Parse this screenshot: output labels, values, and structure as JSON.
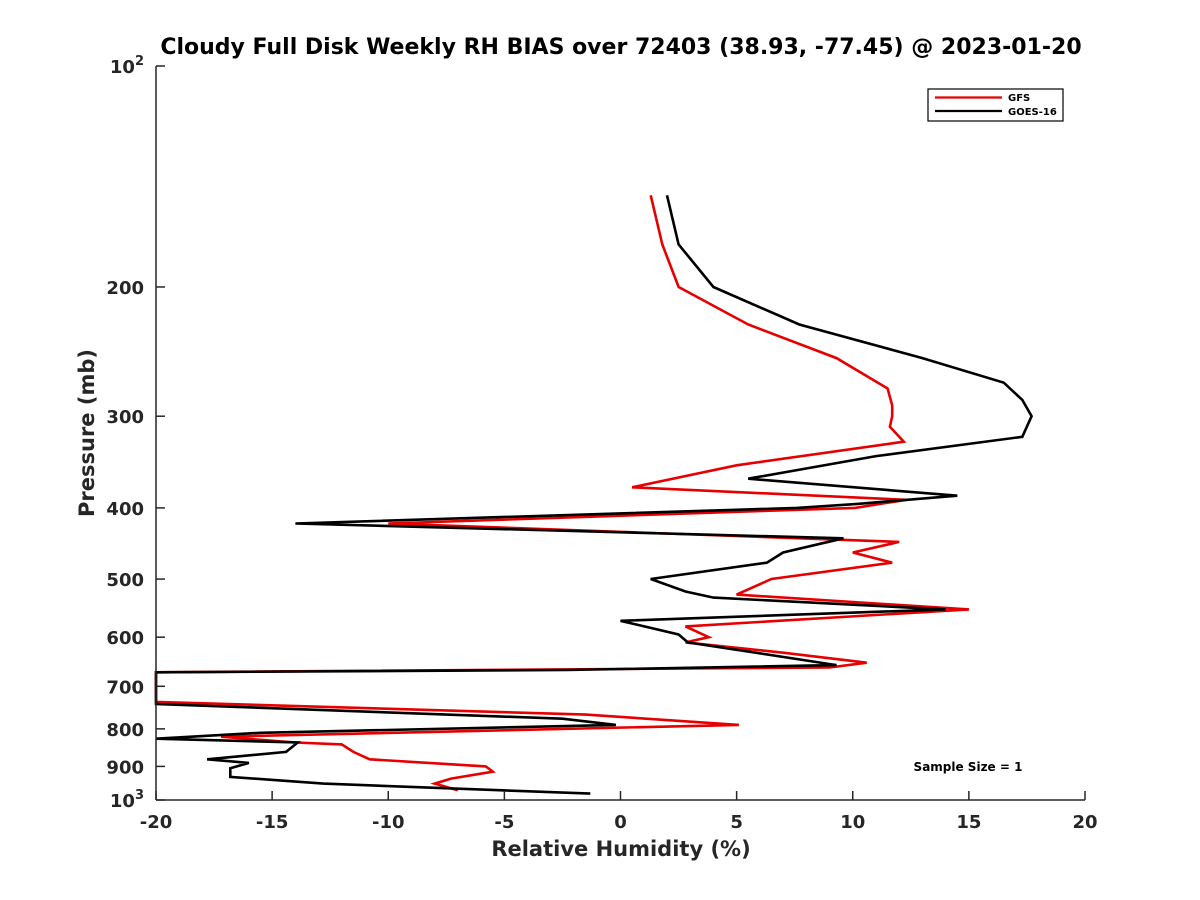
{
  "chart_data": {
    "type": "line",
    "title": "Cloudy Full Disk Weekly RH BIAS over 72403 (38.93, -77.45) @ 2023-01-20",
    "xlabel": "Relative Humidity (%)",
    "ylabel": "Pressure (mb)",
    "xlim": [
      -20,
      20
    ],
    "ylim": [
      100,
      1000
    ],
    "y_scale": "log",
    "y_reversed": true,
    "grid": false,
    "legend_position": "top-right",
    "annotation": "Sample Size = 1",
    "x_ticks": [
      "-20",
      "-15",
      "-10",
      "-5",
      "0",
      "5",
      "10",
      "15",
      "20"
    ],
    "y_ticks": [
      {
        "value": 100,
        "base": "10",
        "exp": "2"
      },
      {
        "value": 200,
        "label": "200"
      },
      {
        "value": 300,
        "label": "300"
      },
      {
        "value": 400,
        "label": "400"
      },
      {
        "value": 500,
        "label": "500"
      },
      {
        "value": 600,
        "label": "600"
      },
      {
        "value": 700,
        "label": "700"
      },
      {
        "value": 800,
        "label": "800"
      },
      {
        "value": 900,
        "label": "900"
      },
      {
        "value": 1000,
        "base": "10",
        "exp": "3"
      }
    ],
    "series": [
      {
        "name": "GFS",
        "color": "#e60000",
        "points": [
          [
            1.3,
            150
          ],
          [
            1.8,
            175
          ],
          [
            2.5,
            200
          ],
          [
            5.5,
            225
          ],
          [
            9.3,
            250
          ],
          [
            11.5,
            275
          ],
          [
            11.7,
            290
          ],
          [
            11.7,
            300
          ],
          [
            11.6,
            310
          ],
          [
            12.2,
            325
          ],
          [
            5.0,
            350
          ],
          [
            0.5,
            375
          ],
          [
            12.3,
            390
          ],
          [
            10.1,
            400
          ],
          [
            -10.0,
            420
          ],
          [
            12.0,
            445
          ],
          [
            10.0,
            460
          ],
          [
            11.7,
            475
          ],
          [
            6.5,
            500
          ],
          [
            5.0,
            525
          ],
          [
            15.0,
            550
          ],
          [
            2.8,
            580
          ],
          [
            3.8,
            600
          ],
          [
            2.8,
            610
          ],
          [
            7.0,
            630
          ],
          [
            10.6,
            650
          ],
          [
            9.0,
            660
          ],
          [
            -20.0,
            670
          ],
          [
            -20.0,
            735
          ],
          [
            -1.5,
            765
          ],
          [
            5.1,
            790
          ],
          [
            -17.2,
            820
          ],
          [
            -14.0,
            835
          ],
          [
            -12.0,
            840
          ],
          [
            -11.5,
            860
          ],
          [
            -10.8,
            880
          ],
          [
            -5.8,
            900
          ],
          [
            -5.5,
            915
          ],
          [
            -7.3,
            935
          ],
          [
            -8.0,
            950
          ],
          [
            -7.0,
            970
          ]
        ]
      },
      {
        "name": "GOES-16",
        "color": "#000000",
        "points": [
          [
            2.0,
            150
          ],
          [
            2.5,
            175
          ],
          [
            4.0,
            200
          ],
          [
            7.7,
            225
          ],
          [
            13.0,
            250
          ],
          [
            16.5,
            270
          ],
          [
            17.3,
            285
          ],
          [
            17.7,
            300
          ],
          [
            17.3,
            320
          ],
          [
            11.0,
            340
          ],
          [
            5.5,
            365
          ],
          [
            14.5,
            385
          ],
          [
            10.2,
            395
          ],
          [
            7.6,
            400
          ],
          [
            -14.0,
            420
          ],
          [
            9.6,
            440
          ],
          [
            7.0,
            460
          ],
          [
            6.3,
            475
          ],
          [
            1.3,
            500
          ],
          [
            2.8,
            520
          ],
          [
            4.0,
            530
          ],
          [
            14.0,
            550
          ],
          [
            0.0,
            570
          ],
          [
            2.5,
            595
          ],
          [
            2.9,
            610
          ],
          [
            9.3,
            655
          ],
          [
            -2.3,
            665
          ],
          [
            -20.0,
            670
          ],
          [
            -20.0,
            740
          ],
          [
            -2.5,
            775
          ],
          [
            -0.2,
            790
          ],
          [
            -15.5,
            810
          ],
          [
            -20.0,
            825
          ],
          [
            -13.9,
            835
          ],
          [
            -14.4,
            860
          ],
          [
            -17.8,
            880
          ],
          [
            -16.0,
            890
          ],
          [
            -16.8,
            905
          ],
          [
            -16.8,
            930
          ],
          [
            -12.8,
            950
          ],
          [
            -1.3,
            980
          ]
        ]
      }
    ]
  }
}
